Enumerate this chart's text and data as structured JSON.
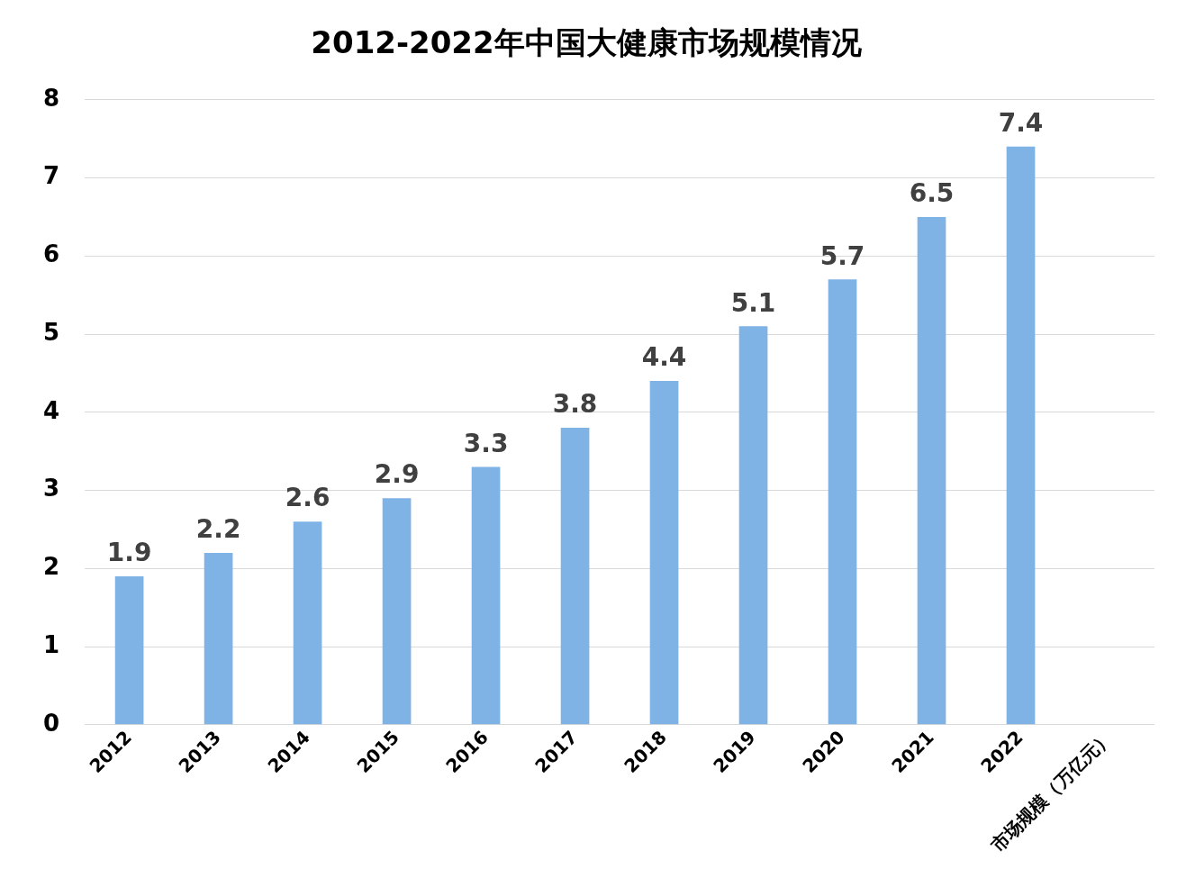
{
  "chart_data": {
    "type": "bar",
    "title": "2012-2022年中国大健康市场规模情况",
    "categories": [
      "2012",
      "2013",
      "2014",
      "2015",
      "2016",
      "2017",
      "2018",
      "2019",
      "2020",
      "2021",
      "2022",
      "市场规模（万亿元）"
    ],
    "values": [
      1.9,
      2.2,
      2.6,
      2.9,
      3.3,
      3.8,
      4.4,
      5.1,
      5.7,
      6.5,
      7.4,
      null
    ],
    "color": "#7fb3e6",
    "ylim": [
      0,
      8
    ],
    "yticks": [
      0,
      1,
      2,
      3,
      4,
      5,
      6,
      7,
      8
    ],
    "grid": "y",
    "data_labels": true,
    "legend": false
  }
}
